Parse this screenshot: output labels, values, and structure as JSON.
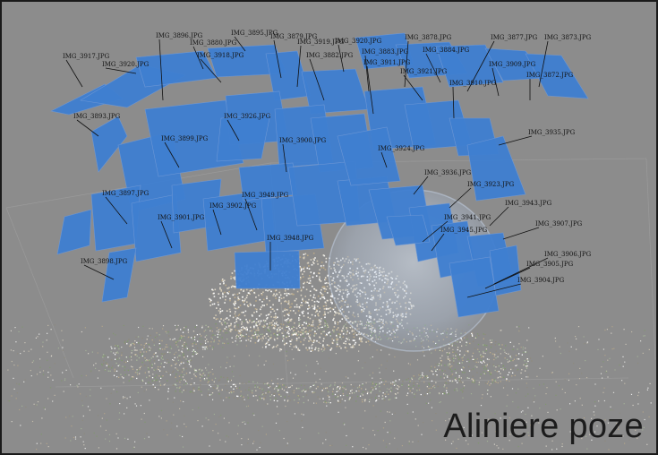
{
  "caption": "Aliniere poze",
  "colors": {
    "viewport_bg": "#8c8c8c",
    "camera_plane": "#3f7fd1",
    "sphere_tint": "#c9d9ef"
  },
  "cameras": [
    {
      "label": "IMG_3917.JPG"
    },
    {
      "label": "IMG_3920.JPG"
    },
    {
      "label": "IMG_3896.JPG"
    },
    {
      "label": "IMG_3880.JPG"
    },
    {
      "label": "IMG_3918.JPG"
    },
    {
      "label": "IMG_3895.JPG"
    },
    {
      "label": "IMG_3879.JPG"
    },
    {
      "label": "IMG_3919.JPG"
    },
    {
      "label": "IMG_3882.JPG"
    },
    {
      "label": "IMG_3920.JPG"
    },
    {
      "label": "IMG_3883.JPG"
    },
    {
      "label": "IMG_3911.JPG"
    },
    {
      "label": "IMG_3878.JPG"
    },
    {
      "label": "IMG_3884.JPG"
    },
    {
      "label": "IMG_3877.JPG"
    },
    {
      "label": "IMG_3873.JPG"
    },
    {
      "label": "IMG_3909.JPG"
    },
    {
      "label": "IMG_3872.JPG"
    },
    {
      "label": "IMG_3921.JPG"
    },
    {
      "label": "IMG_3910.JPG"
    },
    {
      "label": "IMG_3893.JPG"
    },
    {
      "label": "IMG_3926.JPG"
    },
    {
      "label": "IMG_3935.JPG"
    },
    {
      "label": "IMG_3899.JPG"
    },
    {
      "label": "IMG_3900.JPG"
    },
    {
      "label": "IMG_3924.JPG"
    },
    {
      "label": "IMG_3901.JPG"
    },
    {
      "label": "IMG_3902.JPG"
    },
    {
      "label": "IMG_3949.JPG"
    },
    {
      "label": "IMG_3897.JPG"
    },
    {
      "label": "IMG_3936.JPG"
    },
    {
      "label": "IMG_3923.JPG"
    },
    {
      "label": "IMG_3943.JPG"
    },
    {
      "label": "IMG_3907.JPG"
    },
    {
      "label": "IMG_3941.JPG"
    },
    {
      "label": "IMG_3945.JPG"
    },
    {
      "label": "IMG_3948.JPG"
    },
    {
      "label": "IMG_3898.JPG"
    },
    {
      "label": "IMG_3906.JPG"
    },
    {
      "label": "IMG_3905.JPG"
    },
    {
      "label": "IMG_3904.JPG"
    }
  ]
}
